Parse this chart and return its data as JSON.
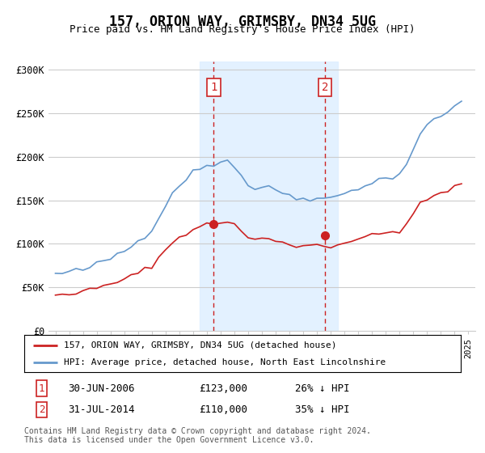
{
  "title": "157, ORION WAY, GRIMSBY, DN34 5UG",
  "subtitle": "Price paid vs. HM Land Registry's House Price Index (HPI)",
  "hpi_label": "HPI: Average price, detached house, North East Lincolnshire",
  "property_label": "157, ORION WAY, GRIMSBY, DN34 5UG (detached house)",
  "hpi_color": "#6699cc",
  "property_color": "#cc2222",
  "shade_color": "#ddeeff",
  "annotation1": {
    "num": "1",
    "date": "30-JUN-2006",
    "price": "£123,000",
    "pct": "26% ↓ HPI"
  },
  "annotation2": {
    "num": "2",
    "date": "31-JUL-2014",
    "price": "£110,000",
    "pct": "35% ↓ HPI"
  },
  "footer": "Contains HM Land Registry data © Crown copyright and database right 2024.\nThis data is licensed under the Open Government Licence v3.0.",
  "ylim": [
    0,
    310000
  ],
  "yticks": [
    0,
    50000,
    100000,
    150000,
    200000,
    250000,
    300000
  ],
  "ytick_labels": [
    "£0",
    "£50K",
    "£100K",
    "£150K",
    "£200K",
    "£250K",
    "£300K"
  ],
  "sale1_year": 2006.5,
  "sale2_year": 2014.583,
  "sale1_price": 123000,
  "sale2_price": 110000,
  "shade_start": 2005.5,
  "shade_end": 2015.5,
  "xlim_start": 1994.5,
  "xlim_end": 2025.5,
  "xtick_start": 1995,
  "xtick_end": 2025,
  "background_color": "#ffffff",
  "grid_color": "#cccccc"
}
